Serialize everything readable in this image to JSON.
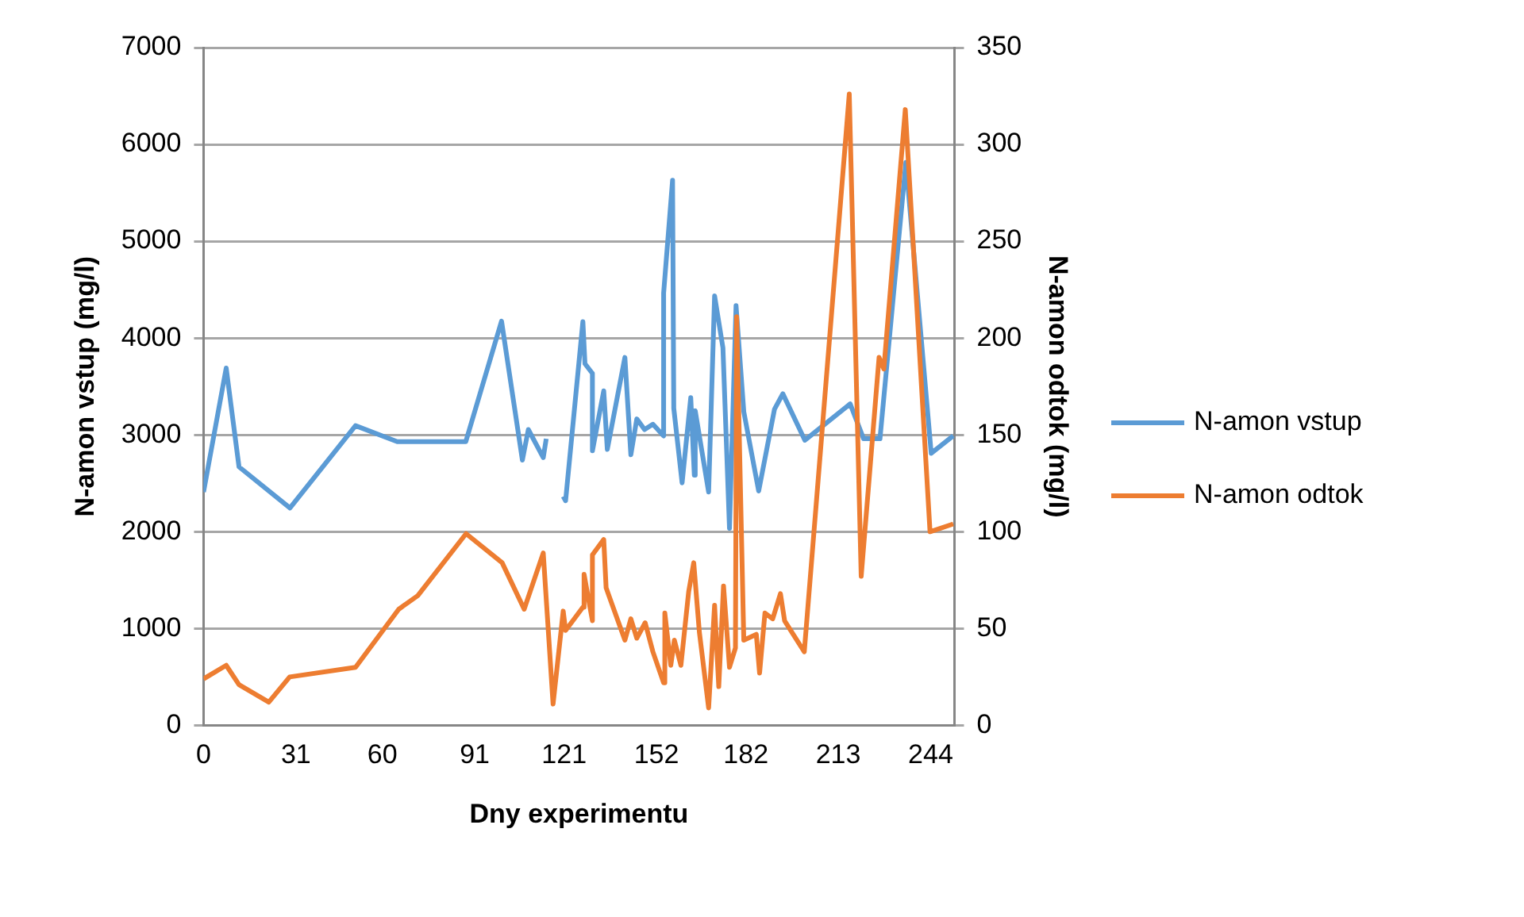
{
  "chart_data": {
    "type": "line",
    "xlabel": "Dny experimentu",
    "ylabel": "N-amon vstup (mg/l)",
    "y2label": "N-amon odtok (mg/l)",
    "xlim": [
      0,
      252
    ],
    "xticks": [
      0,
      31,
      60,
      91,
      121,
      152,
      182,
      213,
      244
    ],
    "ylim": [
      0,
      7000
    ],
    "yticks": [
      0,
      1000,
      2000,
      3000,
      4000,
      5000,
      6000,
      7000
    ],
    "y2lim": [
      0,
      350
    ],
    "y2ticks": [
      0,
      50,
      100,
      150,
      200,
      250,
      300,
      350
    ],
    "grid": "y",
    "legend": "right",
    "marker": "none",
    "line_style": "solid",
    "series": [
      {
        "name": "N-amon vstup",
        "color": "#5b9bd5",
        "x": [
          0,
          7.6,
          11.9,
          29,
          51,
          65,
          88,
          100,
          107,
          109,
          114,
          115,
          118,
          120.7,
          121.5,
          127.3,
          128,
          130.5,
          130.5,
          134.3,
          135.5,
          141.4,
          143.4,
          145.4,
          148,
          150.8,
          154.4,
          154.4,
          157.4,
          157.8,
          160.6,
          163.5,
          164.7,
          165,
          169.5,
          171.5,
          174.3,
          176.5,
          178.7,
          181.3,
          186.3,
          191.6,
          194.4,
          201.8,
          217,
          221.5,
          227,
          235.7,
          244.2,
          251.6
        ],
        "values": [
          2410,
          3690,
          2670,
          2245,
          3095,
          2930,
          2930,
          4175,
          2740,
          3055,
          2765,
          2960,
          null,
          2365,
          2320,
          4170,
          3735,
          3635,
          2835,
          3455,
          2850,
          3800,
          2795,
          3165,
          3055,
          3110,
          2990,
          4465,
          5630,
          3275,
          2505,
          3385,
          2585,
          3250,
          2410,
          4435,
          3900,
          2035,
          4335,
          3240,
          2420,
          3265,
          3425,
          2945,
          3320,
          2960,
          2960,
          5815,
          2810,
          2990
        ]
      },
      {
        "name": "N-amon odtok",
        "color": "#ed7d31",
        "axis": "y2",
        "x": [
          0,
          7.6,
          11.9,
          21.9,
          28.9,
          51,
          65.5,
          71.9,
          88.1,
          100.2,
          107.6,
          114,
          117.3,
          120.7,
          121.5,
          127.3,
          127.7,
          130.5,
          130.5,
          134.3,
          135.1,
          141.4,
          143.4,
          145.4,
          148.2,
          150.8,
          154.4,
          154.8,
          156.8,
          158,
          160.2,
          162.8,
          164.5,
          166.4,
          169.5,
          171.5,
          172.9,
          174.5,
          176.5,
          178.5,
          178.9,
          181.3,
          185.5,
          186.6,
          188.4,
          191,
          193.6,
          195,
          201.6,
          216.7,
          220.7,
          226.7,
          228.3,
          235.5,
          243.8,
          251.6
        ],
        "values": [
          24,
          31,
          21,
          12,
          25,
          30,
          60,
          67,
          99,
          84,
          60,
          89,
          11,
          59,
          49,
          61,
          78,
          54,
          88,
          96,
          71,
          44,
          55,
          45,
          53,
          38,
          22,
          58,
          31,
          44,
          31,
          69,
          84,
          48,
          9,
          62,
          20,
          72,
          30,
          40,
          211,
          44,
          47,
          27,
          58,
          55,
          68,
          54,
          38,
          326,
          77,
          190,
          184,
          318,
          100,
          104
        ]
      }
    ]
  }
}
